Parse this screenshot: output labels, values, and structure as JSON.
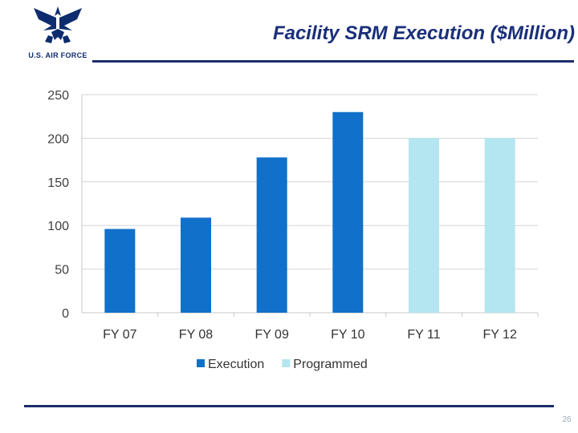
{
  "header": {
    "title": "Facility SRM Execution ($Million)",
    "logo_text": "U.S. AIR FORCE",
    "page_number": "26"
  },
  "colors": {
    "execution": "#1170c9",
    "programmed": "#b3e6f0",
    "rule": "#1c2e6b",
    "title": "#1a2f7a"
  },
  "chart_data": {
    "type": "bar",
    "title": "",
    "xlabel": "",
    "ylabel": "",
    "ylim": [
      0,
      250
    ],
    "yticks": [
      0,
      50,
      100,
      150,
      200,
      250
    ],
    "grid": true,
    "legend_position": "bottom",
    "categories": [
      "FY 07",
      "FY 08",
      "FY 09",
      "FY 10",
      "FY 11",
      "FY 12"
    ],
    "values": [
      96,
      109,
      178,
      230,
      200,
      200
    ],
    "bar_series": [
      "Execution",
      "Execution",
      "Execution",
      "Execution",
      "Programmed",
      "Programmed"
    ],
    "series": [
      {
        "name": "Execution",
        "values": [
          96,
          109,
          178,
          230,
          null,
          null
        ]
      },
      {
        "name": "Programmed",
        "values": [
          null,
          null,
          null,
          null,
          200,
          200
        ]
      }
    ],
    "legend": [
      "Execution",
      "Programmed"
    ]
  }
}
